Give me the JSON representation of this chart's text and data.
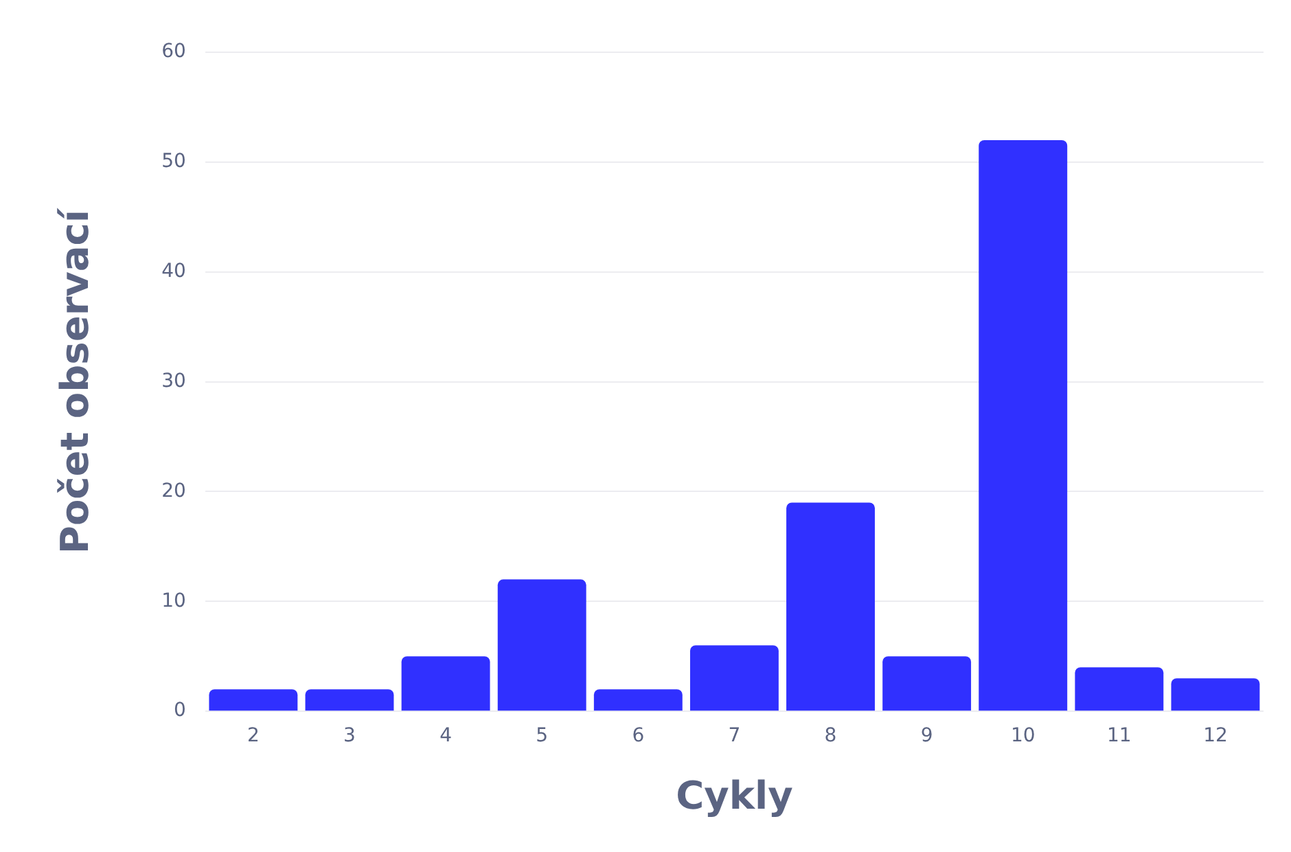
{
  "chart_data": {
    "type": "bar",
    "xlabel": "Cykly",
    "ylabel": "Počet observací",
    "categories": [
      "2",
      "3",
      "4",
      "5",
      "6",
      "7",
      "8",
      "9",
      "10",
      "11",
      "12"
    ],
    "values": [
      2,
      2,
      5,
      12,
      2,
      6,
      19,
      5,
      52,
      4,
      3
    ],
    "color": "#3030ff",
    "ylim": [
      0,
      60
    ],
    "yticks": [
      0,
      10,
      20,
      30,
      40,
      50,
      60
    ],
    "grid": "y",
    "legend": false
  }
}
